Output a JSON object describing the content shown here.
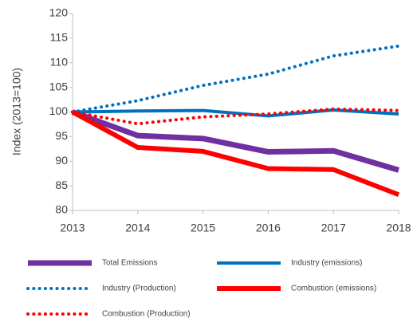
{
  "chart_data": {
    "type": "line",
    "y_label": "Index (2013=100)",
    "x": [
      2013,
      2014,
      2015,
      2016,
      2017,
      2018
    ],
    "xlim": [
      2013,
      2018
    ],
    "xticks": [
      2013,
      2014,
      2015,
      2016,
      2017,
      2018
    ],
    "ylim": [
      80,
      120
    ],
    "yticks": [
      80,
      85,
      90,
      95,
      100,
      105,
      110,
      115,
      120
    ],
    "grid": false,
    "series": [
      {
        "name": "Total Emissions",
        "color": "#7030a0",
        "style": "solid",
        "linewidth": 7,
        "values": [
          100,
          95.2,
          94.6,
          91.9,
          92.1,
          88.2
        ]
      },
      {
        "name": "Industry (emissions)",
        "color": "#0070c0",
        "style": "solid",
        "linewidth": 4,
        "values": [
          100,
          100.2,
          100.3,
          99.2,
          100.4,
          99.6
        ]
      },
      {
        "name": "Industry (Production)",
        "color": "#0070c0",
        "style": "dotted",
        "linewidth": 4,
        "values": [
          100,
          102.3,
          105.4,
          107.7,
          111.4,
          113.4
        ]
      },
      {
        "name": "Combustion (emissions)",
        "color": "#ff0000",
        "style": "solid",
        "linewidth": 6,
        "values": [
          100,
          92.8,
          92.0,
          88.5,
          88.3,
          83.2
        ]
      },
      {
        "name": "Combustion (Production)",
        "color": "#ff0000",
        "style": "dotted",
        "linewidth": 4,
        "values": [
          100,
          97.6,
          99.0,
          99.6,
          100.6,
          100.3
        ]
      }
    ]
  }
}
